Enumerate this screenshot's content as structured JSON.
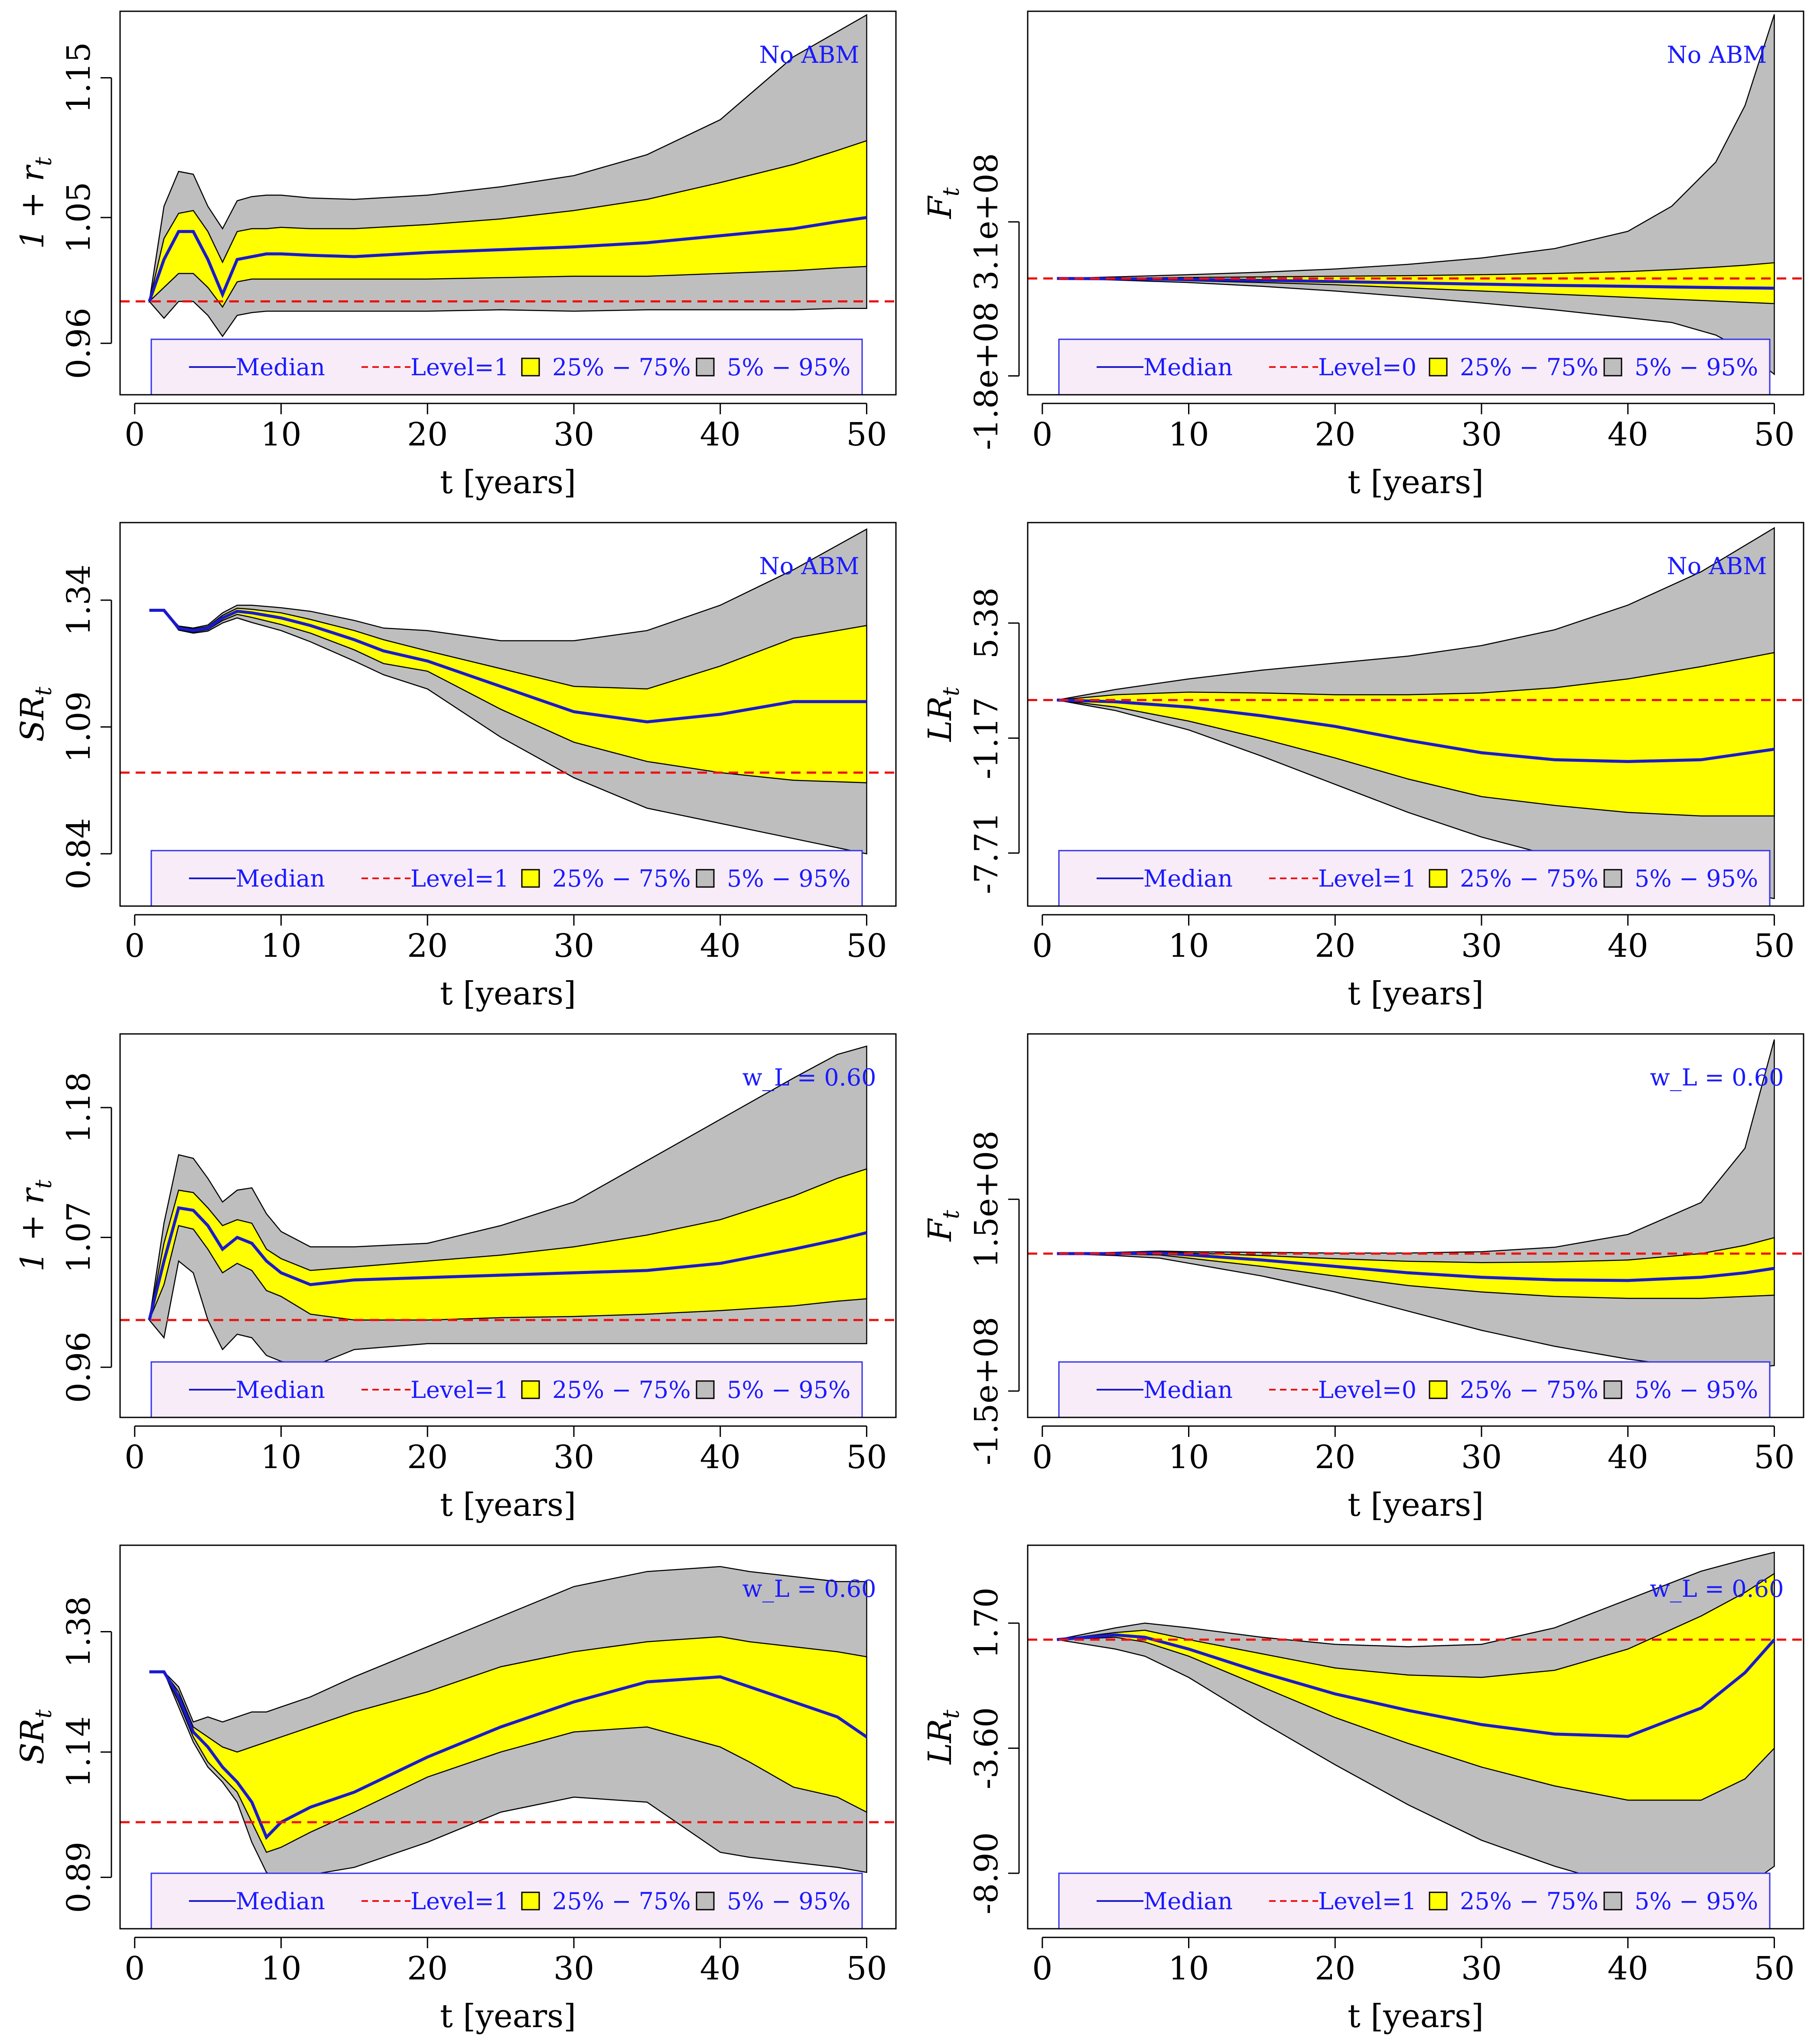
{
  "colors": {
    "p5_95": "#bebebe",
    "p25_75": "#ffff00",
    "median": "#1a1acc",
    "level": "#ee1111",
    "legend_bg": "#f8ecf8",
    "legend_border": "#3333ee",
    "text_blue": "#1a1aff"
  },
  "legend": {
    "median": "Median",
    "level1": "Level=1",
    "level0": "Level=0",
    "iqr": "25% − 75%",
    "p90": "5% − 95%"
  },
  "chart_data": [
    {
      "type": "area",
      "ylabel_main": "1 + r",
      "ylabel_sub": "t",
      "xlabel": "t [years]",
      "annotation": "No ABM",
      "xlim": [
        -1,
        52
      ],
      "xticks": [
        "0",
        "10",
        "20",
        "30",
        "40",
        "50"
      ],
      "xtick_values": [
        0,
        10,
        20,
        30,
        40,
        50
      ],
      "ylim": [
        0.9232,
        1.1976
      ],
      "yticks": [
        "0.96",
        "1.05",
        "1.15"
      ],
      "ytick_values": [
        0.96,
        1.05,
        1.15
      ],
      "level": 0.99,
      "legend_level": "level1",
      "x": [
        1,
        2,
        3,
        4,
        5,
        6,
        7,
        8,
        9,
        10,
        12,
        15,
        20,
        25,
        30,
        35,
        40,
        45,
        48,
        50
      ],
      "median": [
        0.99,
        1.02,
        1.04,
        1.04,
        1.02,
        0.995,
        1.02,
        1.022,
        1.024,
        1.024,
        1.023,
        1.022,
        1.025,
        1.027,
        1.029,
        1.032,
        1.037,
        1.042,
        1.047,
        1.05
      ],
      "p25": [
        0.99,
        1.0,
        1.01,
        1.01,
        1.0,
        0.986,
        1.004,
        1.006,
        1.006,
        1.006,
        1.006,
        1.006,
        1.006,
        1.007,
        1.008,
        1.008,
        1.01,
        1.012,
        1.014,
        1.015
      ],
      "p75": [
        0.99,
        1.035,
        1.053,
        1.055,
        1.04,
        1.018,
        1.04,
        1.042,
        1.042,
        1.043,
        1.042,
        1.042,
        1.045,
        1.049,
        1.055,
        1.063,
        1.075,
        1.088,
        1.098,
        1.105
      ],
      "p5": [
        0.99,
        0.978,
        0.99,
        0.99,
        0.98,
        0.965,
        0.98,
        0.982,
        0.983,
        0.983,
        0.983,
        0.983,
        0.983,
        0.984,
        0.983,
        0.984,
        0.984,
        0.984,
        0.985,
        0.985
      ],
      "p95": [
        0.99,
        1.058,
        1.083,
        1.081,
        1.058,
        1.042,
        1.062,
        1.065,
        1.066,
        1.066,
        1.064,
        1.063,
        1.066,
        1.072,
        1.08,
        1.095,
        1.12,
        1.165,
        1.183,
        1.195
      ]
    },
    {
      "type": "area",
      "ylabel_main": "F",
      "ylabel_sub": "t",
      "xlabel": "t [years]",
      "annotation": "No ABM",
      "xlim": [
        -1,
        52
      ],
      "xticks": [
        "0",
        "10",
        "20",
        "30",
        "40",
        "50"
      ],
      "xtick_values": [
        0,
        10,
        20,
        30,
        40,
        50
      ],
      "ylim": [
        -240000000.0,
        980000000.0
      ],
      "yticks": [
        "-1.8e+08",
        "3.1e+08"
      ],
      "ytick_values": [
        -180000000.0,
        310000000.0
      ],
      "level": 130000000.0,
      "legend_level": "level0",
      "x": [
        1,
        5,
        10,
        15,
        20,
        25,
        30,
        35,
        40,
        43,
        46,
        48,
        50
      ],
      "median": [
        130000000.0,
        129000000.0,
        127000000.0,
        124000000.0,
        120000000.0,
        116000000.0,
        112000000.0,
        108000000.0,
        105000000.0,
        103000000.0,
        101000000.0,
        100000000.0,
        99000000.0
      ],
      "p25": [
        130000000.0,
        128000000.0,
        123000000.0,
        117000000.0,
        110000000.0,
        100000000.0,
        90000000.0,
        80000000.0,
        70000000.0,
        64000000.0,
        58000000.0,
        54000000.0,
        50000000.0
      ],
      "p75": [
        130000000.0,
        131000000.0,
        133000000.0,
        135000000.0,
        137000000.0,
        139000000.0,
        142000000.0,
        146000000.0,
        152000000.0,
        158000000.0,
        166000000.0,
        172000000.0,
        180000000.0
      ],
      "p5": [
        130000000.0,
        125000000.0,
        117000000.0,
        105000000.0,
        90000000.0,
        72000000.0,
        52000000.0,
        30000000.0,
        5000000.0,
        -10000000.0,
        -50000000.0,
        -100000000.0,
        -175000000.0
      ],
      "p95": [
        130000000.0,
        135000000.0,
        142000000.0,
        150000000.0,
        160000000.0,
        175000000.0,
        195000000.0,
        225000000.0,
        280000000.0,
        360000000.0,
        500000000.0,
        680000000.0,
        970000000.0
      ]
    },
    {
      "type": "area",
      "ylabel_main": "SR",
      "ylabel_sub": "t",
      "xlabel": "t [years]",
      "annotation": "No ABM",
      "xlim": [
        -1,
        52
      ],
      "xticks": [
        "0",
        "10",
        "20",
        "30",
        "40",
        "50"
      ],
      "xtick_values": [
        0,
        10,
        20,
        30,
        40,
        50
      ],
      "ylim": [
        0.7369,
        1.4929
      ],
      "yticks": [
        "0.84",
        "1.09",
        "1.34"
      ],
      "ytick_values": [
        0.84,
        1.09,
        1.34
      ],
      "level": 1.0,
      "legend_level": "level1",
      "x": [
        1,
        2,
        3,
        4,
        5,
        6,
        7,
        8,
        10,
        12,
        15,
        17,
        20,
        25,
        30,
        35,
        40,
        45,
        50
      ],
      "median": [
        1.32,
        1.32,
        1.285,
        1.28,
        1.285,
        1.305,
        1.318,
        1.315,
        1.305,
        1.29,
        1.262,
        1.24,
        1.22,
        1.17,
        1.12,
        1.1,
        1.115,
        1.14,
        1.14
      ],
      "p25": [
        1.32,
        1.32,
        1.283,
        1.277,
        1.282,
        1.3,
        1.312,
        1.306,
        1.292,
        1.275,
        1.242,
        1.215,
        1.2,
        1.125,
        1.06,
        1.022,
        1.0,
        0.985,
        0.98
      ],
      "p75": [
        1.32,
        1.32,
        1.287,
        1.283,
        1.288,
        1.31,
        1.324,
        1.322,
        1.315,
        1.302,
        1.28,
        1.262,
        1.24,
        1.205,
        1.17,
        1.165,
        1.21,
        1.265,
        1.29
      ],
      "p5": [
        1.32,
        1.32,
        1.281,
        1.275,
        1.279,
        1.295,
        1.305,
        1.296,
        1.28,
        1.258,
        1.22,
        1.193,
        1.165,
        1.07,
        0.99,
        0.93,
        0.9,
        0.87,
        0.84
      ],
      "p95": [
        1.32,
        1.32,
        1.289,
        1.285,
        1.291,
        1.315,
        1.33,
        1.33,
        1.325,
        1.318,
        1.3,
        1.285,
        1.28,
        1.26,
        1.26,
        1.28,
        1.33,
        1.4,
        1.48
      ]
    },
    {
      "type": "area",
      "ylabel_main": "LR",
      "ylabel_sub": "t",
      "xlabel": "t [years]",
      "annotation": "No ABM",
      "xlim": [
        -1,
        52
      ],
      "xticks": [
        "0",
        "10",
        "20",
        "30",
        "40",
        "50"
      ],
      "xtick_values": [
        0,
        10,
        20,
        30,
        40,
        50
      ],
      "ylim": [
        -10.73,
        11.1
      ],
      "yticks": [
        "-7.71",
        "-1.17",
        "5.38"
      ],
      "ytick_values": [
        -7.71,
        -1.17,
        5.38
      ],
      "level": 1.0,
      "legend_level": "level1",
      "x": [
        1,
        5,
        10,
        15,
        20,
        25,
        30,
        35,
        40,
        45,
        50
      ],
      "median": [
        1.0,
        0.9,
        0.6,
        0.1,
        -0.5,
        -1.3,
        -2.0,
        -2.4,
        -2.5,
        -2.4,
        -1.8
      ],
      "p25": [
        1.0,
        0.6,
        -0.2,
        -1.2,
        -2.3,
        -3.5,
        -4.5,
        -5.0,
        -5.4,
        -5.6,
        -5.6
      ],
      "p75": [
        1.0,
        1.3,
        1.45,
        1.4,
        1.3,
        1.3,
        1.4,
        1.7,
        2.2,
        2.9,
        3.7
      ],
      "p5": [
        1.0,
        0.4,
        -0.7,
        -2.2,
        -3.8,
        -5.4,
        -6.8,
        -7.9,
        -8.8,
        -9.6,
        -10.3
      ],
      "p95": [
        1.0,
        1.6,
        2.2,
        2.7,
        3.1,
        3.5,
        4.1,
        5.0,
        6.4,
        8.3,
        10.8
      ]
    },
    {
      "type": "area",
      "ylabel_main": "1 + r",
      "ylabel_sub": "t",
      "xlabel": "t [years]",
      "annotation": "w_L = 0.60",
      "xlim": [
        -1,
        52
      ],
      "xticks": [
        "0",
        "10",
        "20",
        "30",
        "40",
        "50"
      ],
      "xtick_values": [
        0,
        10,
        20,
        30,
        40,
        50
      ],
      "ylim": [
        0.9175,
        1.2424
      ],
      "yticks": [
        "0.96",
        "1.07",
        "1.18"
      ],
      "ytick_values": [
        0.96,
        1.07,
        1.18
      ],
      "level": 1.0,
      "legend_level": "level1",
      "x": [
        1,
        2,
        3,
        4,
        5,
        6,
        7,
        8,
        9,
        10,
        12,
        15,
        20,
        25,
        30,
        35,
        40,
        45,
        48,
        50
      ],
      "median": [
        1.0,
        1.05,
        1.095,
        1.093,
        1.08,
        1.06,
        1.07,
        1.065,
        1.05,
        1.04,
        1.03,
        1.034,
        1.036,
        1.038,
        1.04,
        1.042,
        1.048,
        1.06,
        1.068,
        1.074
      ],
      "p25": [
        1.0,
        1.03,
        1.08,
        1.077,
        1.06,
        1.04,
        1.048,
        1.042,
        1.025,
        1.02,
        1.005,
        1.0,
        1.0,
        1.002,
        1.003,
        1.005,
        1.008,
        1.012,
        1.016,
        1.018
      ],
      "p75": [
        1.0,
        1.065,
        1.11,
        1.108,
        1.095,
        1.08,
        1.085,
        1.082,
        1.06,
        1.052,
        1.042,
        1.045,
        1.05,
        1.055,
        1.062,
        1.072,
        1.085,
        1.105,
        1.12,
        1.128
      ],
      "p5": [
        1.0,
        0.985,
        1.05,
        1.04,
        1.0,
        0.975,
        0.988,
        0.985,
        0.97,
        0.965,
        0.96,
        0.975,
        0.98,
        0.98,
        0.98,
        0.98,
        0.98,
        0.98,
        0.98,
        0.98
      ],
      "p95": [
        1.0,
        1.082,
        1.14,
        1.137,
        1.12,
        1.1,
        1.11,
        1.112,
        1.09,
        1.075,
        1.062,
        1.062,
        1.065,
        1.08,
        1.1,
        1.135,
        1.17,
        1.205,
        1.225,
        1.232
      ]
    },
    {
      "type": "area",
      "ylabel_main": "F",
      "ylabel_sub": "t",
      "xlabel": "t [years]",
      "annotation": "w_L = 0.60",
      "xlim": [
        -1,
        52
      ],
      "xticks": [
        "0",
        "10",
        "20",
        "30",
        "40",
        "50"
      ],
      "xtick_values": [
        0,
        10,
        20,
        30,
        40,
        50
      ],
      "ylim": [
        -191250000.0,
        408750000.0
      ],
      "yticks": [
        "-1.5e+08",
        "1.5e+08"
      ],
      "ytick_values": [
        -150000000.0,
        150000000.0
      ],
      "level": 65000000.0,
      "legend_level": "level0",
      "x": [
        1,
        5,
        8,
        10,
        15,
        20,
        25,
        30,
        35,
        40,
        45,
        48,
        50
      ],
      "median": [
        65000000.0,
        65000000.0,
        66000000.0,
        63000000.0,
        55000000.0,
        45000000.0,
        35000000.0,
        28000000.0,
        24000000.0,
        23000000.0,
        28000000.0,
        35000000.0,
        42000000.0
      ],
      "p25": [
        65000000.0,
        64000000.0,
        63000000.0,
        58000000.0,
        45000000.0,
        30000000.0,
        15000000.0,
        5000000.0,
        -2000000.0,
        -5000000.0,
        -5000000.0,
        -2000000.0,
        0.0
      ],
      "p75": [
        65000000.0,
        66000000.0,
        68000000.0,
        66000000.0,
        62000000.0,
        57000000.0,
        53000000.0,
        51000000.0,
        52000000.0,
        55000000.0,
        65000000.0,
        78000000.0,
        90000000.0
      ],
      "p5": [
        65000000.0,
        62000000.0,
        58000000.0,
        50000000.0,
        30000000.0,
        5000000.0,
        -25000000.0,
        -55000000.0,
        -80000000.0,
        -100000000.0,
        -115000000.0,
        -115000000.0,
        -110000000.0
      ],
      "p95": [
        65000000.0,
        67000000.0,
        69000000.0,
        68000000.0,
        67000000.0,
        66000000.0,
        66000000.0,
        68000000.0,
        75000000.0,
        95000000.0,
        145000000.0,
        230000000.0,
        400000000.0
      ]
    },
    {
      "type": "area",
      "ylabel_main": "SR",
      "ylabel_sub": "t",
      "xlabel": "t [years]",
      "annotation": "w_L = 0.60",
      "xlim": [
        -1,
        52
      ],
      "xticks": [
        "0",
        "10",
        "20",
        "30",
        "40",
        "50"
      ],
      "xtick_values": [
        0,
        10,
        20,
        30,
        40,
        50
      ],
      "ylim": [
        0.7875,
        1.5525
      ],
      "yticks": [
        "0.89",
        "1.14",
        "1.38"
      ],
      "ytick_values": [
        0.89,
        1.14,
        1.38
      ],
      "level": 1.0,
      "legend_level": "level1",
      "x": [
        1,
        2,
        3,
        4,
        5,
        6,
        7,
        8,
        9,
        10,
        12,
        15,
        20,
        25,
        30,
        35,
        40,
        42,
        45,
        48,
        50
      ],
      "median": [
        1.3,
        1.3,
        1.25,
        1.18,
        1.15,
        1.11,
        1.08,
        1.04,
        0.97,
        1.0,
        1.03,
        1.06,
        1.13,
        1.19,
        1.24,
        1.28,
        1.29,
        1.27,
        1.24,
        1.21,
        1.17
      ],
      "p25": [
        1.3,
        1.3,
        1.24,
        1.17,
        1.12,
        1.09,
        1.06,
        1.0,
        0.94,
        0.95,
        0.98,
        1.02,
        1.09,
        1.14,
        1.18,
        1.19,
        1.15,
        1.12,
        1.07,
        1.05,
        1.02
      ],
      "p75": [
        1.3,
        1.3,
        1.26,
        1.19,
        1.17,
        1.15,
        1.14,
        1.15,
        1.16,
        1.17,
        1.19,
        1.22,
        1.26,
        1.31,
        1.34,
        1.36,
        1.37,
        1.36,
        1.35,
        1.34,
        1.33
      ],
      "p5": [
        1.3,
        1.3,
        1.23,
        1.16,
        1.11,
        1.08,
        1.04,
        0.96,
        0.9,
        0.885,
        0.895,
        0.91,
        0.96,
        1.02,
        1.05,
        1.04,
        0.94,
        0.93,
        0.92,
        0.91,
        0.9
      ],
      "p95": [
        1.3,
        1.3,
        1.27,
        1.2,
        1.21,
        1.2,
        1.21,
        1.22,
        1.22,
        1.23,
        1.25,
        1.29,
        1.35,
        1.41,
        1.47,
        1.5,
        1.51,
        1.5,
        1.49,
        1.48,
        1.48
      ]
    },
    {
      "type": "area",
      "ylabel_main": "LR",
      "ylabel_sub": "t",
      "xlabel": "t [years]",
      "annotation": "w_L = 0.60",
      "xlim": [
        -1,
        52
      ],
      "xticks": [
        "0",
        "10",
        "20",
        "30",
        "40",
        "50"
      ],
      "xtick_values": [
        0,
        10,
        20,
        30,
        40,
        50
      ],
      "ylim": [
        -11.25,
        5.0
      ],
      "yticks": [
        "-8.90",
        "-3.60",
        "1.70"
      ],
      "ytick_values": [
        -8.9,
        -3.6,
        1.7
      ],
      "level": 1.0,
      "legend_level": "level1",
      "x": [
        1,
        5,
        7,
        10,
        15,
        20,
        25,
        30,
        35,
        40,
        45,
        48,
        50
      ],
      "median": [
        1.0,
        1.2,
        1.1,
        0.6,
        -0.4,
        -1.3,
        -2.0,
        -2.6,
        -3.0,
        -3.1,
        -1.9,
        -0.4,
        1.0
      ],
      "p25": [
        1.0,
        1.1,
        0.9,
        0.3,
        -1.0,
        -2.3,
        -3.4,
        -4.4,
        -5.2,
        -5.8,
        -5.8,
        -4.9,
        -3.6
      ],
      "p75": [
        1.0,
        1.3,
        1.4,
        1.0,
        0.4,
        -0.2,
        -0.5,
        -0.6,
        -0.3,
        0.6,
        2.0,
        3.0,
        3.8
      ],
      "p5": [
        1.0,
        0.6,
        0.3,
        -0.6,
        -2.5,
        -4.3,
        -6.0,
        -7.5,
        -8.6,
        -9.5,
        -10.1,
        -9.5,
        -8.6
      ],
      "p95": [
        1.0,
        1.5,
        1.7,
        1.5,
        1.1,
        0.8,
        0.7,
        0.8,
        1.5,
        2.7,
        3.9,
        4.4,
        4.7
      ]
    }
  ]
}
